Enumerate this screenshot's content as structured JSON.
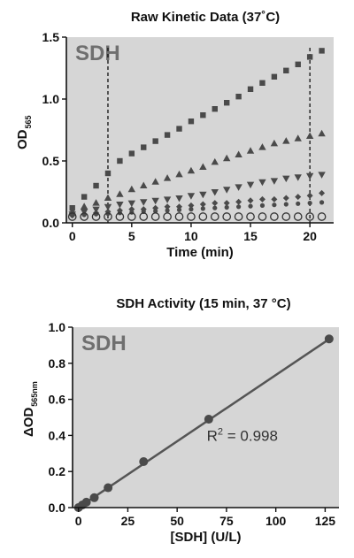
{
  "chart_data": [
    {
      "type": "scatter",
      "title": "Raw Kinetic Data (37˚C)",
      "xlabel": "Time (min)",
      "ylabel_main": "OD",
      "ylabel_sub": "565",
      "watermark": "SDH",
      "xlim": [
        -0.5,
        22
      ],
      "ylim": [
        0,
        1.5
      ],
      "xticks": [
        0,
        5,
        10,
        15,
        20
      ],
      "yticks": [
        0.0,
        0.5,
        1.0,
        1.5
      ],
      "ytick_labels": [
        "0.0",
        "0.5",
        "1.0",
        "1.5"
      ],
      "markers": [
        3,
        20
      ],
      "x": [
        0,
        1,
        2,
        3,
        4,
        5,
        6,
        7,
        8,
        9,
        10,
        11,
        12,
        13,
        14,
        15,
        16,
        17,
        18,
        19,
        20,
        21
      ],
      "series": [
        {
          "marker": "square",
          "values": [
            0.12,
            0.21,
            0.3,
            0.4,
            0.5,
            0.56,
            0.61,
            0.66,
            0.71,
            0.76,
            0.82,
            0.87,
            0.92,
            0.97,
            1.02,
            1.08,
            1.13,
            1.18,
            1.23,
            1.28,
            1.34,
            1.39
          ]
        },
        {
          "marker": "triangle-up",
          "values": [
            0.09,
            0.13,
            0.16,
            0.2,
            0.23,
            0.27,
            0.3,
            0.33,
            0.36,
            0.39,
            0.42,
            0.45,
            0.49,
            0.52,
            0.55,
            0.58,
            0.61,
            0.64,
            0.66,
            0.68,
            0.7,
            0.72
          ]
        },
        {
          "marker": "triangle-down",
          "values": [
            0.07,
            0.09,
            0.11,
            0.13,
            0.15,
            0.16,
            0.17,
            0.18,
            0.19,
            0.2,
            0.22,
            0.23,
            0.25,
            0.27,
            0.29,
            0.31,
            0.33,
            0.34,
            0.36,
            0.37,
            0.38,
            0.39
          ]
        },
        {
          "marker": "diamond",
          "values": [
            0.06,
            0.07,
            0.08,
            0.09,
            0.1,
            0.11,
            0.11,
            0.12,
            0.13,
            0.13,
            0.14,
            0.15,
            0.16,
            0.16,
            0.17,
            0.18,
            0.19,
            0.19,
            0.2,
            0.21,
            0.22,
            0.24
          ]
        },
        {
          "marker": "dot",
          "values": [
            0.06,
            0.065,
            0.07,
            0.075,
            0.08,
            0.085,
            0.09,
            0.095,
            0.1,
            0.105,
            0.11,
            0.115,
            0.12,
            0.125,
            0.13,
            0.135,
            0.14,
            0.145,
            0.15,
            0.155,
            0.16,
            0.165
          ]
        },
        {
          "marker": "open-circle",
          "values": [
            0.05,
            0.05,
            0.05,
            0.05,
            0.05,
            0.05,
            0.05,
            0.05,
            0.05,
            0.05,
            0.05,
            0.05,
            0.05,
            0.05,
            0.05,
            0.05,
            0.05,
            0.05,
            0.05,
            0.05,
            0.05,
            0.05
          ]
        }
      ],
      "grid": false,
      "background": "#d6d6d6"
    },
    {
      "type": "scatter",
      "title": "SDH Activity (15 min, 37 °C)",
      "xlabel": "[SDH] (U/L)",
      "ylabel_main": "ΔOD",
      "ylabel_sub": "565nm",
      "watermark": "SDH",
      "annotation": {
        "r2_prefix": "R",
        "r2_exp": "2",
        "r2_value": " = 0.998"
      },
      "xlim": [
        -3,
        132
      ],
      "ylim": [
        0,
        1.0
      ],
      "xticks": [
        0,
        25,
        50,
        75,
        100,
        125
      ],
      "yticks": [
        0.0,
        0.2,
        0.4,
        0.6,
        0.8,
        1.0
      ],
      "ytick_labels": [
        "0.0",
        "0.2",
        "0.4",
        "0.6",
        "0.8",
        "1.0"
      ],
      "x": [
        0,
        2,
        4,
        8,
        15,
        33,
        66,
        127
      ],
      "values": [
        0.0,
        0.015,
        0.03,
        0.055,
        0.11,
        0.255,
        0.49,
        0.935
      ],
      "fit": {
        "slope": 0.00735,
        "intercept": 0.0
      },
      "grid": false,
      "background": "#d6d6d6"
    }
  ],
  "colors": {
    "marker": "#4a4a4a",
    "line": "#555555",
    "dashed": "#111111",
    "background": "#d6d6d6"
  }
}
